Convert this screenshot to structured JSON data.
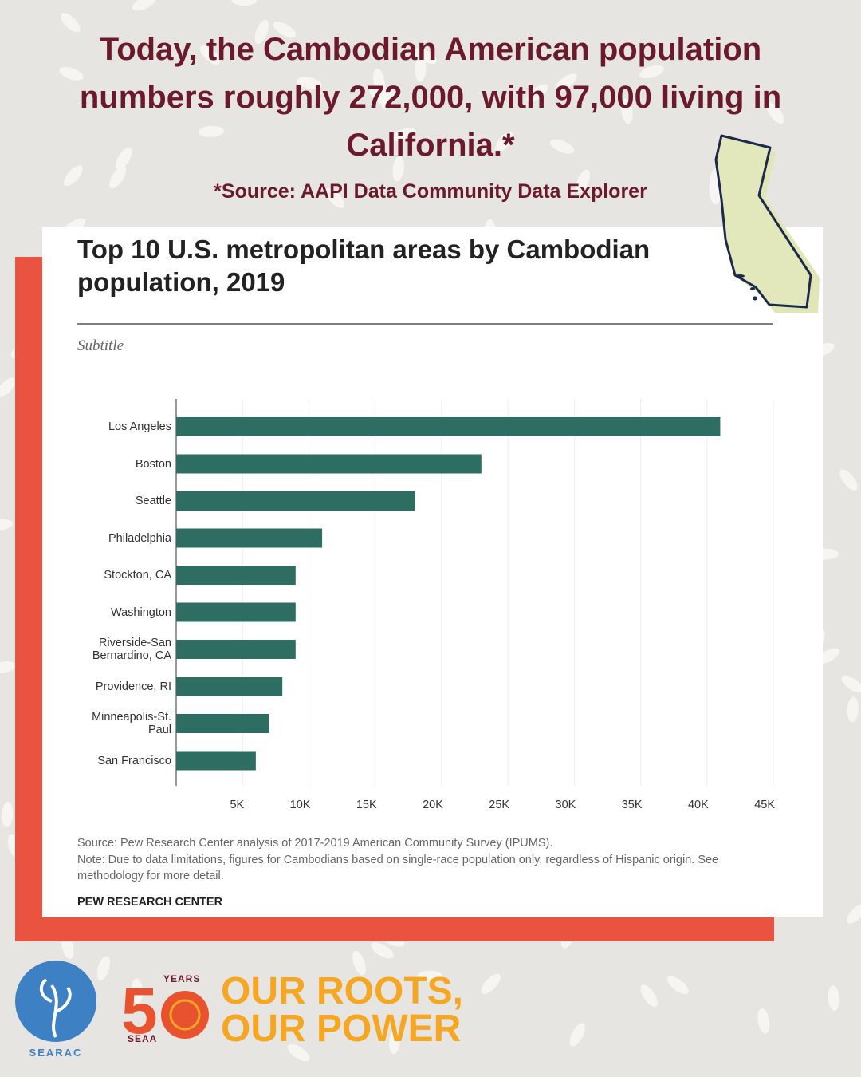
{
  "headline": "Today, the Cambodian American population numbers roughly 272,000, with 97,000 living in California.*",
  "source_note": "*Source: AAPI Data Community Data Explorer",
  "chart_data": {
    "type": "bar",
    "orientation": "horizontal",
    "title": "Top 10 U.S. metropolitan areas by Cambodian population, 2019",
    "subtitle": "Subtitle",
    "categories": [
      "Los Angeles",
      "Boston",
      "Seattle",
      "Philadelphia",
      "Stockton, CA",
      "Washington",
      "Riverside-San Bernardino, CA",
      "Providence, RI",
      "Minneapolis-St. Paul",
      "San Francisco"
    ],
    "values": [
      41000,
      23000,
      18000,
      11000,
      9000,
      9000,
      9000,
      8000,
      7000,
      6000
    ],
    "color": "#2e6e62",
    "xlim": [
      0,
      45000
    ],
    "xticks": [
      {
        "value": 5000,
        "label": "5K"
      },
      {
        "value": 10000,
        "label": "10K"
      },
      {
        "value": 15000,
        "label": "15K"
      },
      {
        "value": 20000,
        "label": "20K"
      },
      {
        "value": 25000,
        "label": "25K"
      },
      {
        "value": 30000,
        "label": "30K"
      },
      {
        "value": 35000,
        "label": "35K"
      },
      {
        "value": 40000,
        "label": "40K"
      },
      {
        "value": 45000,
        "label": "45K"
      }
    ],
    "grid": true,
    "source": "Source: Pew Research Center analysis of 2017-2019 American Community Survey (IPUMS).",
    "note": "Note: Due to data limitations, figures for Cambodians based on single-race population only, regardless of Hispanic origin. See methodology for more detail.",
    "credit": "PEW RESEARCH CENTER"
  },
  "footer": {
    "searac": "SEARAC",
    "years": "YEARS",
    "five": "5",
    "seaa": "SEAA",
    "slogan_1": "OUR ROOTS,",
    "slogan_2": "OUR POWER"
  }
}
